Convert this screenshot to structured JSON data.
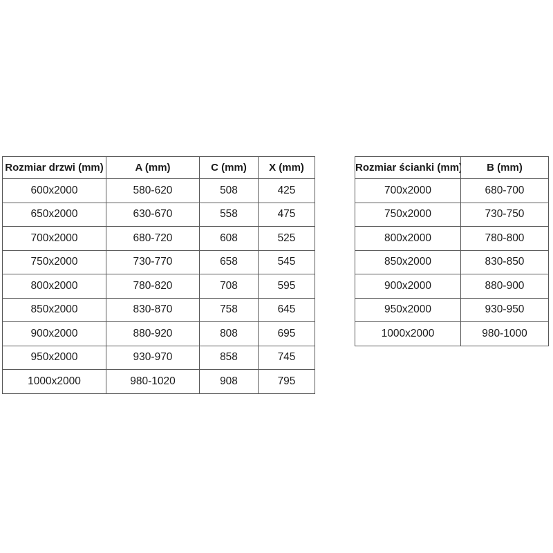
{
  "page": {
    "background_color": "#ffffff",
    "text_color": "#1b1b1b",
    "border_color": "#595959"
  },
  "tables": [
    {
      "name": "door-size-table",
      "headers": [
        "Rozmiar drzwi (mm)",
        "A (mm)",
        "C (mm)",
        "X (mm)"
      ],
      "rows": [
        [
          "600x2000",
          "580-620",
          "508",
          "425"
        ],
        [
          "650x2000",
          "630-670",
          "558",
          "475"
        ],
        [
          "700x2000",
          "680-720",
          "608",
          "525"
        ],
        [
          "750x2000",
          "730-770",
          "658",
          "545"
        ],
        [
          "800x2000",
          "780-820",
          "708",
          "595"
        ],
        [
          "850x2000",
          "830-870",
          "758",
          "645"
        ],
        [
          "900x2000",
          "880-920",
          "808",
          "695"
        ],
        [
          "950x2000",
          "930-970",
          "858",
          "745"
        ],
        [
          "1000x2000",
          "980-1020",
          "908",
          "795"
        ]
      ]
    },
    {
      "name": "wall-size-table",
      "headers": [
        "Rozmiar ścianki (mm)",
        "B (mm)"
      ],
      "rows": [
        [
          "700x2000",
          "680-700"
        ],
        [
          "750x2000",
          "730-750"
        ],
        [
          "800x2000",
          "780-800"
        ],
        [
          "850x2000",
          "830-850"
        ],
        [
          "900x2000",
          "880-900"
        ],
        [
          "950x2000",
          "930-950"
        ],
        [
          "1000x2000",
          "980-1000"
        ]
      ]
    }
  ]
}
